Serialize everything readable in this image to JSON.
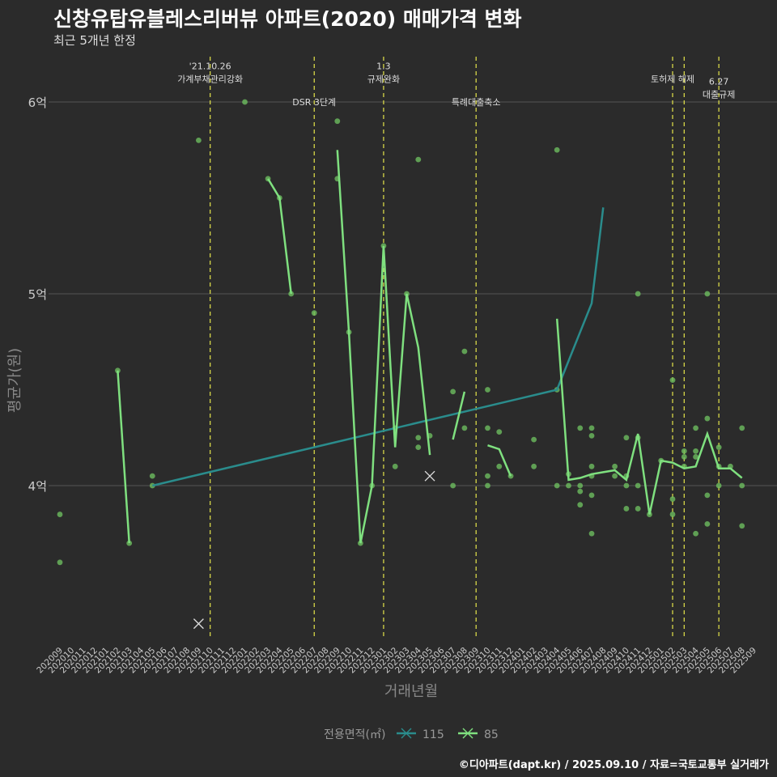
{
  "title": "신창유탑유블레스리버뷰 아파트(2020) 매매가격 변화",
  "subtitle": "최근 5개년 한정",
  "caption": "©디아파트(dapt.kr) / 2025.09.10 / 자료=국토교통부 실거래가",
  "colors": {
    "background": "#2b2b2b",
    "grid": "#555555",
    "axis_text": "#cccccc",
    "series_115": "#2a8c8c",
    "series_85": "#7fe07f",
    "points": "#6dbd5f",
    "event_line": "#e5e54a"
  },
  "chart_data": {
    "type": "line",
    "title": "신창유탑유블레스리버뷰 아파트(2020) 매매가격 변화",
    "subtitle": "최근 5개년 한정",
    "xlabel": "거래년월",
    "ylabel": "평균가(원)",
    "y_unit": "억",
    "ylim": [
      3.2,
      6.2
    ],
    "y_ticks": [
      {
        "value": 4,
        "label": "4억"
      },
      {
        "value": 5,
        "label": "5억"
      },
      {
        "value": 6,
        "label": "6억"
      }
    ],
    "x_categories": [
      "202009",
      "202010",
      "202011",
      "202012",
      "202101",
      "202102",
      "202103",
      "202104",
      "202105",
      "202106",
      "202107",
      "202108",
      "202109",
      "202110",
      "202111",
      "202112",
      "202201",
      "202202",
      "202203",
      "202204",
      "202205",
      "202206",
      "202207",
      "202208",
      "202209",
      "202210",
      "202211",
      "202212",
      "202301",
      "202302",
      "202303",
      "202304",
      "202305",
      "202306",
      "202307",
      "202308",
      "202309",
      "202310",
      "202311",
      "202312",
      "202401",
      "202402",
      "202403",
      "202404",
      "202405",
      "202406",
      "202407",
      "202408",
      "202409",
      "202410",
      "202411",
      "202412",
      "202501",
      "202502",
      "202503",
      "202504",
      "202505",
      "202506",
      "202507",
      "202508",
      "202509"
    ],
    "legend": {
      "title": "전용면적(㎡)",
      "position": "bottom",
      "entries": [
        "115",
        "85"
      ]
    },
    "grid": true,
    "events": [
      {
        "x": 13.0,
        "label": "'21.10.26\n가계부채관리강화",
        "label_y": 6.12
      },
      {
        "x": 22.0,
        "label": "DSR 3단계",
        "label_y": 6.0
      },
      {
        "x": 28.0,
        "label": "1.3\n규제완화",
        "label_y": 6.12
      },
      {
        "x": 36.0,
        "label": "특례대출축소",
        "label_y": 6.0
      },
      {
        "x": 53.0,
        "label": "토허제 해제",
        "label_y": 6.12
      },
      {
        "x": 54.0,
        "label": "",
        "label_y": 6.12
      },
      {
        "x": 57.0,
        "label": "6.27\n대출규제",
        "label_y": 6.04
      }
    ],
    "series": [
      {
        "name": "115",
        "color": "#2a8c8c",
        "points": [
          [
            8,
            4.0
          ],
          [
            43,
            4.5
          ],
          [
            46,
            4.95
          ],
          [
            47,
            5.45
          ]
        ]
      },
      {
        "name": "85",
        "color": "#7fe07f",
        "segments": [
          [
            [
              5,
              4.6
            ],
            [
              6,
              3.7
            ]
          ],
          [
            [
              18,
              5.6
            ],
            [
              19,
              5.5
            ],
            [
              20,
              5.0
            ]
          ],
          [
            [
              24,
              5.75
            ],
            [
              25,
              4.8
            ],
            [
              26,
              3.7
            ],
            [
              27,
              4.0
            ],
            [
              28,
              5.25
            ],
            [
              29,
              4.2
            ],
            [
              30,
              5.0
            ],
            [
              31,
              4.72
            ],
            [
              32,
              4.16
            ]
          ],
          [
            [
              34,
              4.24
            ],
            [
              35,
              4.49
            ]
          ],
          [
            [
              37,
              4.21
            ],
            [
              38,
              4.19
            ],
            [
              39,
              4.05
            ]
          ],
          [
            [
              43,
              4.87
            ],
            [
              44,
              4.03
            ],
            [
              45,
              4.04
            ],
            [
              46,
              4.06
            ],
            [
              47,
              4.07
            ],
            [
              48,
              4.08
            ],
            [
              49,
              4.03
            ],
            [
              50,
              4.27
            ],
            [
              51,
              3.85
            ],
            [
              52,
              4.13
            ],
            [
              53,
              4.12
            ],
            [
              54,
              4.09
            ],
            [
              55,
              4.1
            ],
            [
              56,
              4.27
            ],
            [
              57,
              4.09
            ],
            [
              58,
              4.09
            ],
            [
              59,
              4.04
            ]
          ]
        ]
      }
    ],
    "scatter_points": [
      [
        0,
        3.85
      ],
      [
        0,
        3.6
      ],
      [
        5,
        4.6
      ],
      [
        6,
        3.7
      ],
      [
        8,
        4.05
      ],
      [
        8,
        4.0
      ],
      [
        12,
        5.8
      ],
      [
        16,
        6.0
      ],
      [
        18,
        5.6
      ],
      [
        19,
        5.5
      ],
      [
        20,
        5.0
      ],
      [
        22,
        4.9
      ],
      [
        24,
        5.9
      ],
      [
        24,
        5.6
      ],
      [
        25,
        4.8
      ],
      [
        26,
        3.7
      ],
      [
        27,
        4.0
      ],
      [
        28,
        5.25
      ],
      [
        29,
        4.1
      ],
      [
        29,
        4.3
      ],
      [
        30,
        5.0
      ],
      [
        31,
        5.7
      ],
      [
        31,
        4.25
      ],
      [
        31,
        4.2
      ],
      [
        32,
        4.26
      ],
      [
        34,
        4.49
      ],
      [
        34,
        4.0
      ],
      [
        35,
        4.7
      ],
      [
        35,
        4.3
      ],
      [
        37,
        4.5
      ],
      [
        37,
        4.3
      ],
      [
        37,
        4.05
      ],
      [
        37,
        4.0
      ],
      [
        38,
        4.28
      ],
      [
        38,
        4.1
      ],
      [
        39,
        4.05
      ],
      [
        41,
        4.24
      ],
      [
        41,
        4.1
      ],
      [
        43,
        5.75
      ],
      [
        43,
        4.5
      ],
      [
        43,
        4.0
      ],
      [
        44,
        4.06
      ],
      [
        44,
        4.0
      ],
      [
        45,
        4.3
      ],
      [
        45,
        4.0
      ],
      [
        45,
        3.97
      ],
      [
        45,
        3.9
      ],
      [
        46,
        4.3
      ],
      [
        46,
        4.26
      ],
      [
        46,
        4.1
      ],
      [
        46,
        4.05
      ],
      [
        46,
        3.95
      ],
      [
        46,
        3.75
      ],
      [
        48,
        4.1
      ],
      [
        48,
        4.05
      ],
      [
        49,
        4.25
      ],
      [
        49,
        4.05
      ],
      [
        49,
        4.0
      ],
      [
        49,
        3.88
      ],
      [
        50,
        5.0
      ],
      [
        50,
        4.25
      ],
      [
        50,
        4.0
      ],
      [
        50,
        3.88
      ],
      [
        51,
        3.85
      ],
      [
        52,
        4.13
      ],
      [
        53,
        4.55
      ],
      [
        53,
        3.93
      ],
      [
        53,
        3.85
      ],
      [
        54,
        4.18
      ],
      [
        54,
        4.15
      ],
      [
        54,
        4.1
      ],
      [
        55,
        4.3
      ],
      [
        55,
        4.18
      ],
      [
        55,
        4.15
      ],
      [
        55,
        3.75
      ],
      [
        56,
        5.0
      ],
      [
        56,
        4.35
      ],
      [
        56,
        3.95
      ],
      [
        56,
        3.8
      ],
      [
        57,
        4.2
      ],
      [
        57,
        4.1
      ],
      [
        57,
        4.0
      ],
      [
        58,
        4.1
      ],
      [
        59,
        4.3
      ],
      [
        59,
        4.0
      ],
      [
        59,
        3.79
      ]
    ],
    "cancelled": [
      {
        "series": "115",
        "x": 32,
        "y": 4.05
      },
      {
        "series": "85",
        "x": 12,
        "y": 3.28
      }
    ]
  }
}
